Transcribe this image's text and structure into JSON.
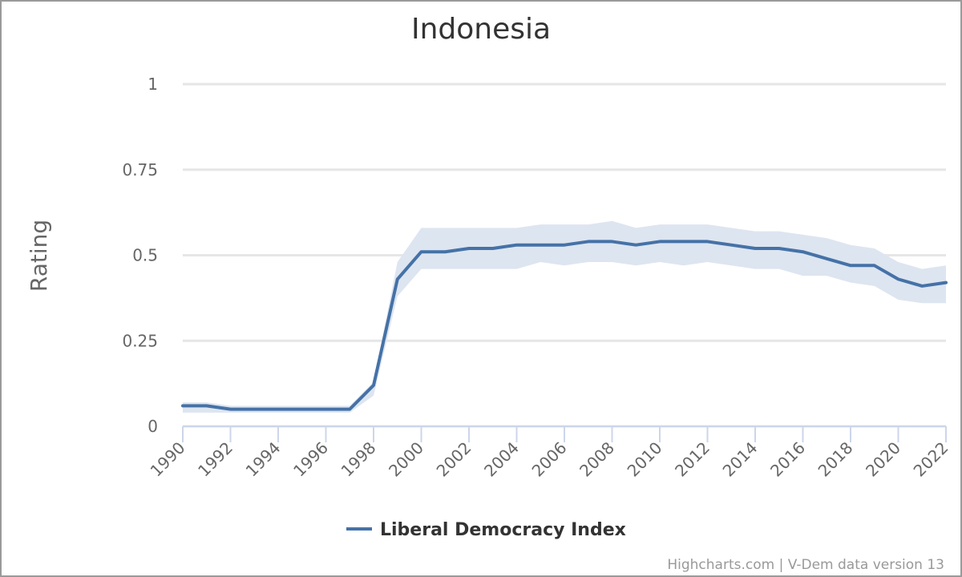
{
  "chart_data": {
    "type": "line",
    "title": "Indonesia",
    "xlabel": "",
    "ylabel": "Rating",
    "xlim": [
      1990,
      2022
    ],
    "ylim": [
      0,
      1
    ],
    "yticks": [
      0,
      0.25,
      0.5,
      0.75,
      1
    ],
    "ytick_labels": [
      "0",
      "0.25",
      "0.5",
      "0.75",
      "1"
    ],
    "xticks": [
      "1990",
      "1992",
      "1994",
      "1996",
      "1998",
      "2000",
      "2002",
      "2004",
      "2006",
      "2008",
      "2010",
      "2012",
      "2014",
      "2016",
      "2018",
      "2020",
      "2022"
    ],
    "grid": true,
    "legend": "bottom-center",
    "series": [
      {
        "name": "Liberal Democracy Index",
        "color": "#4572a7",
        "band_color": "#dde5f0",
        "x": [
          1990,
          1991,
          1992,
          1993,
          1994,
          1995,
          1996,
          1997,
          1998,
          1999,
          2000,
          2001,
          2002,
          2003,
          2004,
          2005,
          2006,
          2007,
          2008,
          2009,
          2010,
          2011,
          2012,
          2013,
          2014,
          2015,
          2016,
          2017,
          2018,
          2019,
          2020,
          2021,
          2022
        ],
        "values": [
          0.06,
          0.06,
          0.05,
          0.05,
          0.05,
          0.05,
          0.05,
          0.05,
          0.12,
          0.43,
          0.51,
          0.51,
          0.52,
          0.52,
          0.53,
          0.53,
          0.53,
          0.54,
          0.54,
          0.53,
          0.54,
          0.54,
          0.54,
          0.53,
          0.52,
          0.52,
          0.51,
          0.49,
          0.47,
          0.47,
          0.43,
          0.41,
          0.42
        ],
        "upper": [
          0.07,
          0.07,
          0.06,
          0.06,
          0.06,
          0.06,
          0.06,
          0.06,
          0.13,
          0.48,
          0.58,
          0.58,
          0.58,
          0.58,
          0.58,
          0.59,
          0.59,
          0.59,
          0.6,
          0.58,
          0.59,
          0.59,
          0.59,
          0.58,
          0.57,
          0.57,
          0.56,
          0.55,
          0.53,
          0.52,
          0.48,
          0.46,
          0.47
        ],
        "lower": [
          0.04,
          0.04,
          0.04,
          0.04,
          0.04,
          0.04,
          0.04,
          0.04,
          0.09,
          0.38,
          0.46,
          0.46,
          0.46,
          0.46,
          0.46,
          0.48,
          0.47,
          0.48,
          0.48,
          0.47,
          0.48,
          0.47,
          0.48,
          0.47,
          0.46,
          0.46,
          0.44,
          0.44,
          0.42,
          0.41,
          0.37,
          0.36,
          0.36
        ]
      }
    ]
  },
  "credits": "Highcharts.com | V-Dem data version 13"
}
